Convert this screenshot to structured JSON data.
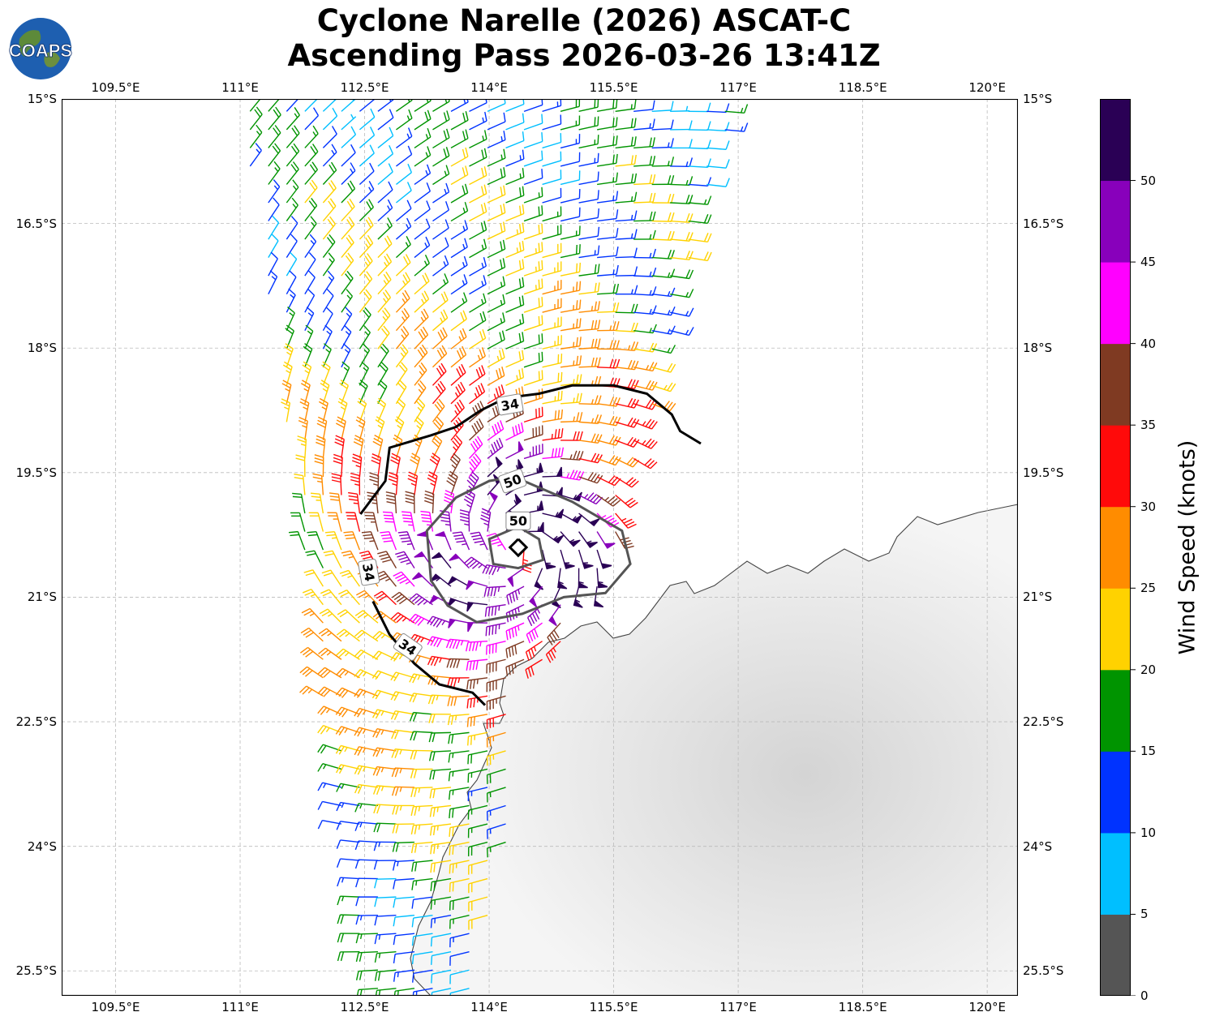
{
  "header": {
    "logo_text": "COAPS",
    "title_line1": "Cyclone Narelle (2026) ASCAT-C",
    "title_line2": "Ascending Pass 2026-03-26 13:41Z"
  },
  "map": {
    "lon_range": [
      108.85,
      120.37
    ],
    "lat_range": [
      -25.8,
      -15.0
    ],
    "lon_ticks": [
      "109.5°E",
      "111°E",
      "112.5°E",
      "114°E",
      "115.5°E",
      "117°E",
      "118.5°E",
      "120°E"
    ],
    "lon_tick_values": [
      109.5,
      111,
      112.5,
      114,
      115.5,
      117,
      118.5,
      120
    ],
    "lat_ticks": [
      "15°S",
      "16.5°S",
      "18°S",
      "19.5°S",
      "21°S",
      "22.5°S",
      "24°S",
      "25.5°S"
    ],
    "lat_tick_values": [
      -15,
      -16.5,
      -18,
      -19.5,
      -21,
      -22.5,
      -24,
      -25.5
    ],
    "storm_center": {
      "lon": 114.35,
      "lat": -20.4
    },
    "contours": [
      {
        "level": "34",
        "label": "34",
        "color": "#000000"
      },
      {
        "level": "50",
        "label": "50",
        "color": "#555555"
      },
      {
        "level": "50",
        "label": "50",
        "color": "#555555"
      }
    ],
    "swath_lon_edges_north": [
      111.0,
      116.95
    ],
    "swath_lat_extent": [
      -15.0,
      -25.8
    ],
    "grid": "on",
    "land_color": "#f0f0f0"
  },
  "colorbar": {
    "label": "Wind Speed (knots)",
    "ticks": [
      "0",
      "5",
      "10",
      "15",
      "20",
      "25",
      "30",
      "35",
      "40",
      "45",
      "50"
    ],
    "bins": [
      {
        "from": 0,
        "to": 5,
        "color": "#555555"
      },
      {
        "from": 5,
        "to": 10,
        "color": "#00bfff"
      },
      {
        "from": 10,
        "to": 15,
        "color": "#0033ff"
      },
      {
        "from": 15,
        "to": 20,
        "color": "#009400"
      },
      {
        "from": 20,
        "to": 25,
        "color": "#ffd200"
      },
      {
        "from": 25,
        "to": 30,
        "color": "#ff8c00"
      },
      {
        "from": 30,
        "to": 35,
        "color": "#ff0a0a"
      },
      {
        "from": 35,
        "to": 40,
        "color": "#7f3a22"
      },
      {
        "from": 40,
        "to": 45,
        "color": "#ff00ff"
      },
      {
        "from": 45,
        "to": 50,
        "color": "#8800bb"
      },
      {
        "from": 50,
        "to": 55,
        "color": "#2a0055"
      }
    ]
  }
}
